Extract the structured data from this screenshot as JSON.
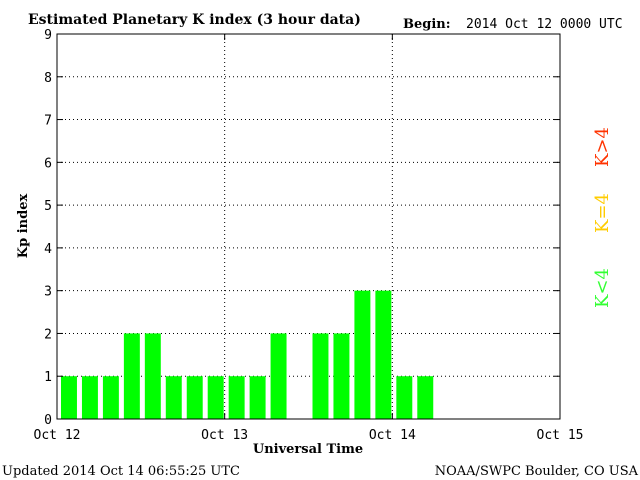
{
  "chart_data": {
    "type": "bar",
    "title": "Estimated Planetary K index (3 hour data)",
    "begin_label": "Begin:",
    "begin_value": "2014 Oct 12 0000 UTC",
    "ylabel": "Kp index",
    "xlabel": "Universal Time",
    "ylim": [
      0,
      9
    ],
    "yticks": [
      "0",
      "1",
      "2",
      "3",
      "4",
      "5",
      "6",
      "7",
      "8",
      "9"
    ],
    "x_range_hours": [
      0,
      72
    ],
    "xticks": [
      {
        "hour": 0,
        "label": "Oct 12"
      },
      {
        "hour": 24,
        "label": "Oct 13"
      },
      {
        "hour": 48,
        "label": "Oct 14"
      },
      {
        "hour": 72,
        "label": "Oct 15"
      }
    ],
    "grid": true,
    "series": [
      {
        "color": "#00ff00",
        "points": [
          {
            "hour": 0,
            "value": 1
          },
          {
            "hour": 3,
            "value": 1
          },
          {
            "hour": 6,
            "value": 1
          },
          {
            "hour": 9,
            "value": 2
          },
          {
            "hour": 12,
            "value": 2
          },
          {
            "hour": 15,
            "value": 1
          },
          {
            "hour": 18,
            "value": 1
          },
          {
            "hour": 21,
            "value": 1
          },
          {
            "hour": 24,
            "value": 1
          },
          {
            "hour": 27,
            "value": 1
          },
          {
            "hour": 30,
            "value": 2
          },
          {
            "hour": 36,
            "value": 2
          },
          {
            "hour": 39,
            "value": 2
          },
          {
            "hour": 42,
            "value": 3
          },
          {
            "hour": 45,
            "value": 3
          },
          {
            "hour": 48,
            "value": 1
          },
          {
            "hour": 51,
            "value": 1
          }
        ]
      }
    ],
    "legend": [
      {
        "text": "K<4",
        "color": "#33ff33"
      },
      {
        "text": "K=4",
        "color": "#ffcc00"
      },
      {
        "text": "K>4",
        "color": "#ff3300"
      }
    ],
    "footer_left": "Updated 2014 Oct 14 06:55:25 UTC",
    "footer_right": "NOAA/SWPC Boulder, CO USA"
  }
}
